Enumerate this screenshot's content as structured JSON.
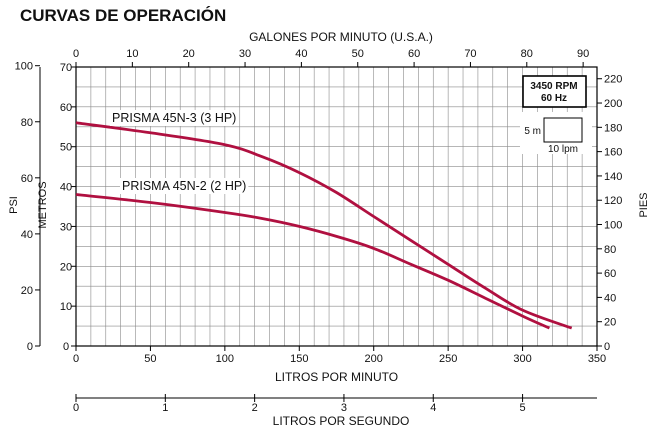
{
  "chart_data": {
    "type": "line",
    "title": "CURVAS DE OPERACIÓN",
    "x_axis_bottom": {
      "label": "LITROS POR MINUTO",
      "ticks": [
        "0",
        "50",
        "100",
        "150",
        "200",
        "250",
        "300",
        "350"
      ],
      "range": [
        0,
        350
      ]
    },
    "x_axis_top": {
      "label": "GALONES POR MINUTO (U.S.A.)",
      "ticks": [
        "0",
        "10",
        "20",
        "30",
        "40",
        "50",
        "60",
        "70",
        "80",
        "90"
      ]
    },
    "x_axis_secondary": {
      "label": "LITROS POR SEGUNDO",
      "ticks": [
        "0",
        "1",
        "2",
        "3",
        "4",
        "5"
      ]
    },
    "y_axis_left": {
      "label": "METROS",
      "ticks": [
        "0",
        "10",
        "20",
        "30",
        "40",
        "50",
        "60",
        "70"
      ],
      "range": [
        0,
        70
      ]
    },
    "y_axis_psi": {
      "label": "PSI",
      "ticks": [
        "0",
        "20",
        "40",
        "60",
        "80",
        "100"
      ]
    },
    "y_axis_right": {
      "label": "PIES",
      "ticks": [
        "0",
        "20",
        "40",
        "60",
        "80",
        "100",
        "120",
        "140",
        "160",
        "180",
        "200",
        "220"
      ]
    },
    "grid": true,
    "series_color": "#b01040",
    "series": [
      {
        "name": "PRISMA 45N-3 (3 HP)",
        "x": [
          0,
          50,
          100,
          125,
          150,
          175,
          200,
          225,
          250,
          275,
          300,
          333
        ],
        "y": [
          56,
          53.5,
          50.5,
          47.5,
          43.5,
          38.5,
          32.5,
          26.5,
          20.5,
          14.5,
          9,
          4.5
        ]
      },
      {
        "name": "PRISMA 45N-2 (2 HP)",
        "x": [
          0,
          50,
          100,
          125,
          150,
          175,
          200,
          225,
          250,
          275,
          300,
          318
        ],
        "y": [
          38,
          36,
          33.5,
          32,
          30,
          27.5,
          24.5,
          20.5,
          16.5,
          12,
          7.5,
          4.5
        ]
      }
    ],
    "legend_box": {
      "rpm": "3450 RPM",
      "hz": "60 Hz",
      "scale_v": "5 m",
      "scale_h": "10 lpm"
    }
  }
}
